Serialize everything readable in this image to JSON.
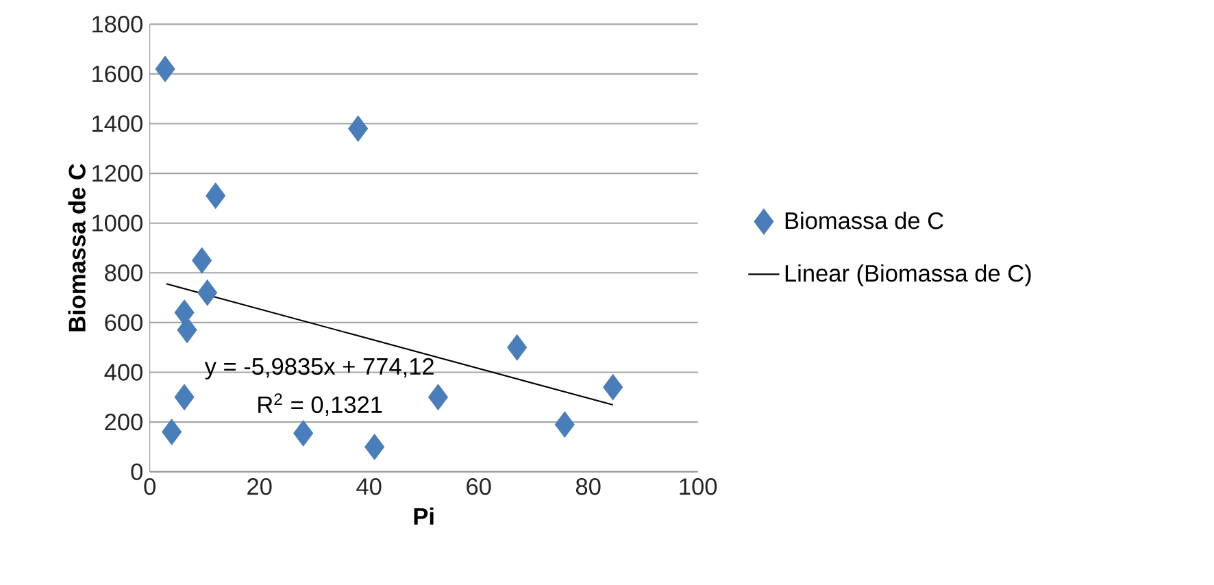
{
  "chart_data": {
    "type": "scatter",
    "xlabel": "Pi",
    "ylabel": "Biomassa de C",
    "series": [
      {
        "name": "Biomassa de C",
        "color": "#4a7ebb",
        "marker": "diamond",
        "x": [
          2.8,
          38,
          12,
          9.5,
          10.5,
          6.3,
          6.8,
          6.3,
          4,
          28,
          41,
          52.6,
          67,
          75.7,
          84.5
        ],
        "values": [
          1620,
          1380,
          1110,
          850,
          720,
          640,
          570,
          300,
          160,
          155,
          100,
          300,
          500,
          190,
          340
        ]
      },
      {
        "name": "Linear (Biomassa de C)",
        "type": "line",
        "color": "#000000",
        "marker": "none",
        "x": [
          3,
          84.5
        ],
        "values": [
          756,
          269
        ]
      }
    ],
    "annotations": [
      "y = -5,9835x + 774,12",
      "R$^{2}$ = 0,1321"
    ],
    "xlim": [
      0,
      100
    ],
    "xticks": [
      0,
      20,
      40,
      60,
      80,
      100
    ],
    "ylim": [
      0,
      1800
    ],
    "yticks": [
      0,
      200,
      400,
      600,
      800,
      1000,
      1200,
      1400,
      1600,
      1800
    ],
    "grid": "y",
    "legend": "right"
  }
}
